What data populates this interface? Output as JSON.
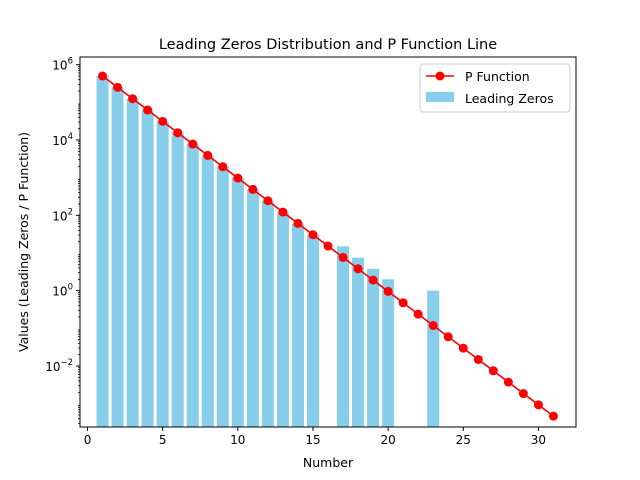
{
  "chart_data": {
    "type": "bar",
    "title": "Leading Zeros Distribution and P Function Line",
    "xlabel": "Number",
    "ylabel": "Values (Leading Zeros / P Function)",
    "xlim": [
      -0.5,
      32.5
    ],
    "ylim": [
      0.00024,
      1600000
    ],
    "yscale": "log",
    "grid": false,
    "legend_position": "top-right",
    "x_ticks": [
      0,
      5,
      10,
      15,
      20,
      25,
      30
    ],
    "x_tick_labels": [
      "0",
      "5",
      "10",
      "15",
      "20",
      "25",
      "30"
    ],
    "y_ticks": [
      0.01,
      1,
      100,
      10000,
      1000000
    ],
    "y_tick_mantissa": [
      "10",
      "10",
      "10",
      "10",
      "10"
    ],
    "y_tick_exponent": [
      "−2",
      "0",
      "2",
      "4",
      "6"
    ],
    "series": [
      {
        "name": "Leading Zeros",
        "kind": "bar",
        "color": "#87ceeb",
        "x": [
          1,
          2,
          3,
          4,
          5,
          6,
          7,
          8,
          9,
          10,
          11,
          12,
          13,
          14,
          15,
          17,
          18,
          19,
          20,
          23
        ],
        "values": [
          500000,
          250000,
          125000,
          62000,
          31000,
          16000,
          7800,
          3900,
          1950,
          980,
          490,
          240,
          120,
          60,
          30,
          15,
          7.5,
          3.8,
          2,
          1
        ]
      },
      {
        "name": "P Function",
        "kind": "line",
        "color": "#ff0000",
        "marker_color": "#ff0000",
        "x": [
          1,
          2,
          3,
          4,
          5,
          6,
          7,
          8,
          9,
          10,
          11,
          12,
          13,
          14,
          15,
          16,
          17,
          18,
          19,
          20,
          21,
          22,
          23,
          24,
          25,
          26,
          27,
          28,
          29,
          30,
          31
        ],
        "values": [
          500000,
          250000,
          125000,
          62500,
          31250,
          15625,
          7812.5,
          3906.25,
          1953.1,
          976.6,
          488.3,
          244.1,
          122.1,
          61.0,
          30.5,
          15.3,
          7.63,
          3.81,
          1.91,
          0.954,
          0.477,
          0.238,
          0.119,
          0.0596,
          0.0298,
          0.0149,
          0.00745,
          0.00373,
          0.00186,
          0.000931,
          0.000466
        ]
      }
    ]
  }
}
